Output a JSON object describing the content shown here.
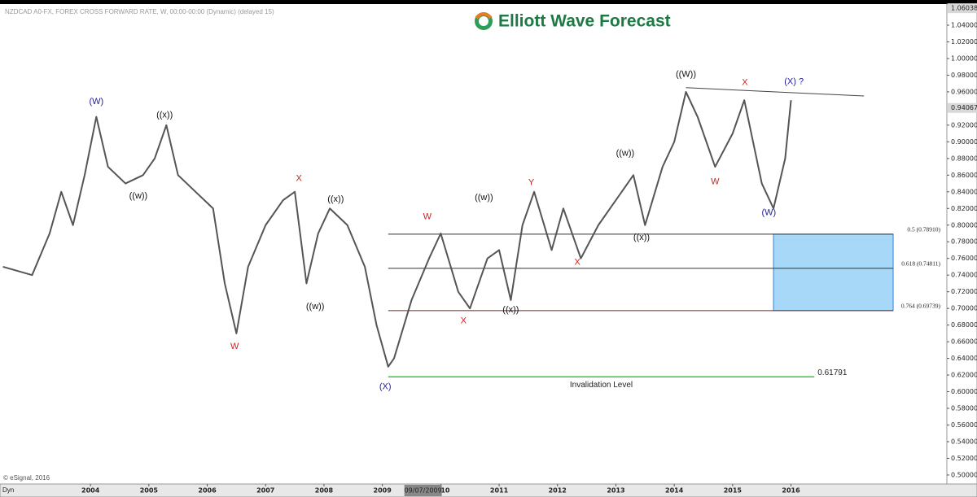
{
  "chart_data": {
    "type": "line",
    "header": "NZDCAD A0-FX, FOREX CROSS FORWARD RATE, W, 00:00-00:00 (Dynamic) (delayed 15)",
    "logo": "Elliott Wave Forecast",
    "copyright": "© eSignal, 2016",
    "mode_label": "Dyn",
    "cursor_date": "09/07/2009",
    "x": [
      2002.5,
      2003.0,
      2003.3,
      2003.5,
      2003.7,
      2003.9,
      2004.1,
      2004.3,
      2004.6,
      2004.9,
      2005.1,
      2005.3,
      2005.5,
      2005.8,
      2006.1,
      2006.3,
      2006.5,
      2006.7,
      2007.0,
      2007.3,
      2007.5,
      2007.7,
      2007.9,
      2008.1,
      2008.4,
      2008.7,
      2008.9,
      2009.1,
      2009.2,
      2009.5,
      2009.8,
      2010.0,
      2010.3,
      2010.5,
      2010.8,
      2011.0,
      2011.2,
      2011.4,
      2011.6,
      2011.9,
      2012.1,
      2012.4,
      2012.7,
      2013.0,
      2013.3,
      2013.5,
      2013.8,
      2014.0,
      2014.2,
      2014.4,
      2014.7,
      2015.0,
      2015.2,
      2015.5,
      2015.7,
      2015.9,
      2016.0
    ],
    "series": [
      {
        "name": "NZDCAD",
        "color": "#555555",
        "values": [
          0.75,
          0.74,
          0.79,
          0.84,
          0.8,
          0.86,
          0.93,
          0.87,
          0.85,
          0.86,
          0.88,
          0.92,
          0.86,
          0.84,
          0.82,
          0.73,
          0.67,
          0.75,
          0.8,
          0.83,
          0.84,
          0.73,
          0.79,
          0.82,
          0.8,
          0.75,
          0.68,
          0.63,
          0.64,
          0.71,
          0.76,
          0.79,
          0.72,
          0.7,
          0.76,
          0.77,
          0.71,
          0.8,
          0.84,
          0.77,
          0.82,
          0.76,
          0.8,
          0.83,
          0.86,
          0.8,
          0.87,
          0.9,
          0.96,
          0.93,
          0.87,
          0.91,
          0.95,
          0.85,
          0.82,
          0.88,
          0.95
        ]
      }
    ],
    "xlim": [
      2002.45,
      2018.67
    ],
    "ylim": [
      0.4892,
      1.0654
    ],
    "xticks": [
      2004,
      2005,
      2006,
      2007,
      2008,
      2009,
      2010,
      2011,
      2012,
      2013,
      2014,
      2015,
      2016
    ],
    "yticks": [
      {
        "value": 1.04,
        "label": "1.04000"
      },
      {
        "value": 1.02,
        "label": "1.02000"
      },
      {
        "value": 1.0,
        "label": "1.00000"
      },
      {
        "value": 0.98,
        "label": "0.98000"
      },
      {
        "value": 0.96,
        "label": "0.96000"
      },
      {
        "value": 0.92,
        "label": "0.92000"
      },
      {
        "value": 0.9,
        "label": "0.90000"
      },
      {
        "value": 0.88,
        "label": "0.88000"
      },
      {
        "value": 0.86,
        "label": "0.86000"
      },
      {
        "value": 0.84,
        "label": "0.84000"
      },
      {
        "value": 0.82,
        "label": "0.82000"
      },
      {
        "value": 0.8,
        "label": "0.80000"
      },
      {
        "value": 0.78,
        "label": "0.78000"
      },
      {
        "value": 0.76,
        "label": "0.76000"
      },
      {
        "value": 0.74,
        "label": "0.74000"
      },
      {
        "value": 0.72,
        "label": "0.72000"
      },
      {
        "value": 0.7,
        "label": "0.70000"
      },
      {
        "value": 0.68,
        "label": "0.68000"
      },
      {
        "value": 0.66,
        "label": "0.66000"
      },
      {
        "value": 0.64,
        "label": "0.64000"
      },
      {
        "value": 0.62,
        "label": "0.62000"
      },
      {
        "value": 0.6,
        "label": "0.60000"
      },
      {
        "value": 0.58,
        "label": "0.58000"
      },
      {
        "value": 0.56,
        "label": "0.56000"
      },
      {
        "value": 0.54,
        "label": "0.54000"
      },
      {
        "value": 0.52,
        "label": "0.52000"
      },
      {
        "value": 0.5,
        "label": "0.50000"
      }
    ],
    "high_price": {
      "value": 1.06038,
      "label": "1.06038"
    },
    "last_price": {
      "value": 0.94067,
      "label": "0.94067"
    },
    "fib_levels": [
      {
        "label": "0.5 (0.78910)",
        "value": 0.7891,
        "color": "#333333"
      },
      {
        "label": "0.618 (0.74811)",
        "value": 0.74811,
        "color": "#333333"
      },
      {
        "label": "0.764 (0.69739)",
        "value": 0.69739,
        "color": "#6b2b2b"
      }
    ],
    "fib_x": [
      2009.1,
      2017.75
    ],
    "target_box": {
      "x": [
        2015.7,
        2017.75
      ],
      "y": [
        0.69739,
        0.7891
      ],
      "color": "#a8d8f8"
    },
    "trendline": {
      "x": [
        2014.2,
        2017.25
      ],
      "y": [
        0.965,
        0.955
      ]
    },
    "invalidation": {
      "value": 0.61791,
      "label": "0.61791",
      "text": "Invalidation Level",
      "x": [
        2009.1,
        2016.4
      ],
      "color": "#33cc33"
    },
    "annotations": [
      {
        "text": "(W)",
        "x": 2004.1,
        "y": 0.948,
        "color": "#2020a0"
      },
      {
        "text": "((x))",
        "x": 2005.27,
        "y": 0.932,
        "color": "#111111"
      },
      {
        "text": "((w))",
        "x": 2004.82,
        "y": 0.835,
        "color": "#111111"
      },
      {
        "text": "W",
        "x": 2006.47,
        "y": 0.654,
        "color": "#cc2222"
      },
      {
        "text": "X",
        "x": 2007.57,
        "y": 0.856,
        "color": "#cc2222"
      },
      {
        "text": "((x))",
        "x": 2008.2,
        "y": 0.831,
        "color": "#111111"
      },
      {
        "text": "((w))",
        "x": 2007.85,
        "y": 0.702,
        "color": "#111111"
      },
      {
        "text": "(X)",
        "x": 2009.05,
        "y": 0.606,
        "color": "#2020a0"
      },
      {
        "text": "W",
        "x": 2009.77,
        "y": 0.81,
        "color": "#cc2222"
      },
      {
        "text": "X",
        "x": 2010.39,
        "y": 0.685,
        "color": "#cc2222"
      },
      {
        "text": "((w))",
        "x": 2010.74,
        "y": 0.833,
        "color": "#111111"
      },
      {
        "text": "((x))",
        "x": 2011.2,
        "y": 0.698,
        "color": "#111111"
      },
      {
        "text": "Y",
        "x": 2011.55,
        "y": 0.851,
        "color": "#cc2222"
      },
      {
        "text": "X",
        "x": 2012.34,
        "y": 0.755,
        "color": "#cc2222"
      },
      {
        "text": "((w))",
        "x": 2013.16,
        "y": 0.886,
        "color": "#111111"
      },
      {
        "text": "((x))",
        "x": 2013.44,
        "y": 0.785,
        "color": "#111111"
      },
      {
        "text": "((W))",
        "x": 2014.2,
        "y": 0.981,
        "color": "#111111"
      },
      {
        "text": "W",
        "x": 2014.7,
        "y": 0.852,
        "color": "#cc2222"
      },
      {
        "text": "X",
        "x": 2015.21,
        "y": 0.971,
        "color": "#cc2222"
      },
      {
        "text": "(X) ?",
        "x": 2016.05,
        "y": 0.972,
        "color": "#2020a0"
      },
      {
        "text": "(W)",
        "x": 2015.62,
        "y": 0.815,
        "color": "#2020a0"
      }
    ]
  }
}
